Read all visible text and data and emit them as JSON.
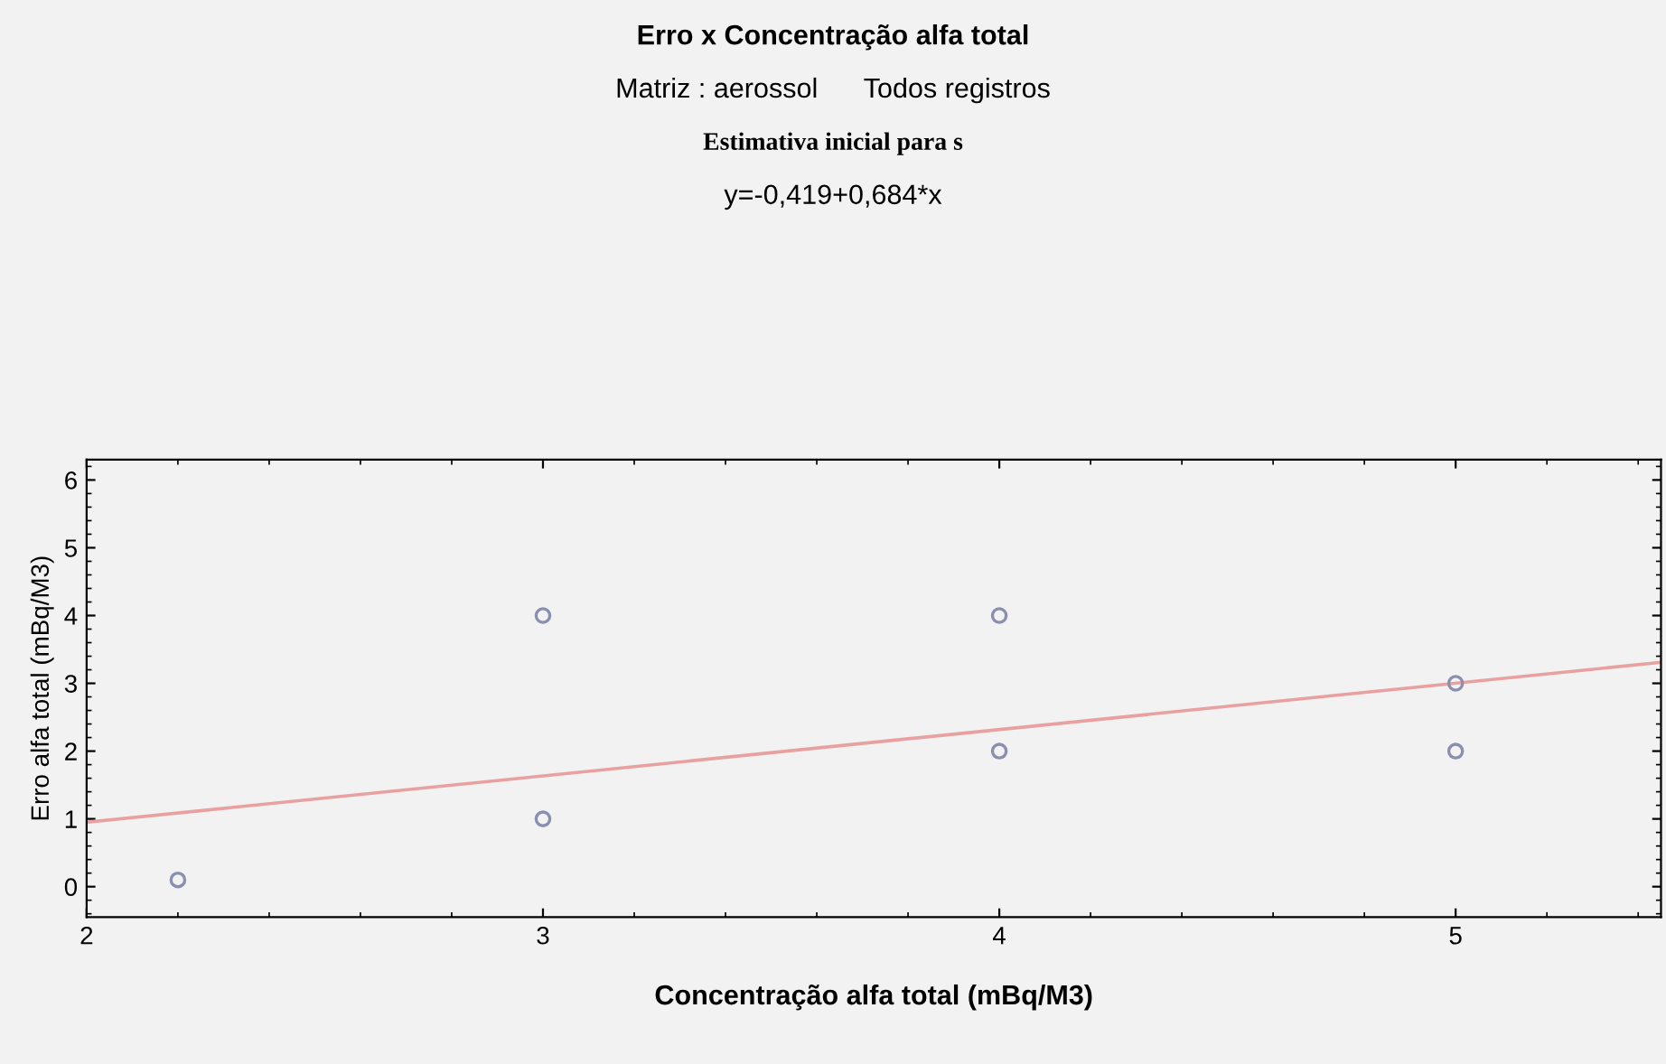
{
  "chart_data": {
    "type": "scatter",
    "title": "Erro x Concentração alfa total",
    "subtitle": "Matriz : aerossol      Todos registros",
    "xlabel": "Concentração alfa total (mBq/M3)",
    "ylabel": "Erro alfa total (mBq/M3)",
    "annotations": [
      "Estimativa inicial para s",
      "y=-0,419+0,684*x"
    ],
    "series": [
      {
        "color": "#8a8fb0",
        "marker": "circle",
        "x": [
          2.2,
          3,
          3,
          4,
          4,
          5,
          5
        ],
        "values": [
          0.1,
          4,
          1,
          4,
          2,
          3,
          2
        ]
      },
      {
        "type": "line",
        "color": "#e8a0a0",
        "marker": "none",
        "x": [
          2,
          5.45
        ],
        "values": [
          0.95,
          3.31
        ]
      }
    ],
    "xlim": [
      2,
      5.45
    ],
    "xticks": [
      2,
      3,
      4,
      5
    ],
    "ylim": [
      -0.45,
      6.3
    ],
    "yticks": [
      0,
      1,
      2,
      3,
      4,
      5,
      6
    ],
    "grid": false,
    "legend": false
  }
}
